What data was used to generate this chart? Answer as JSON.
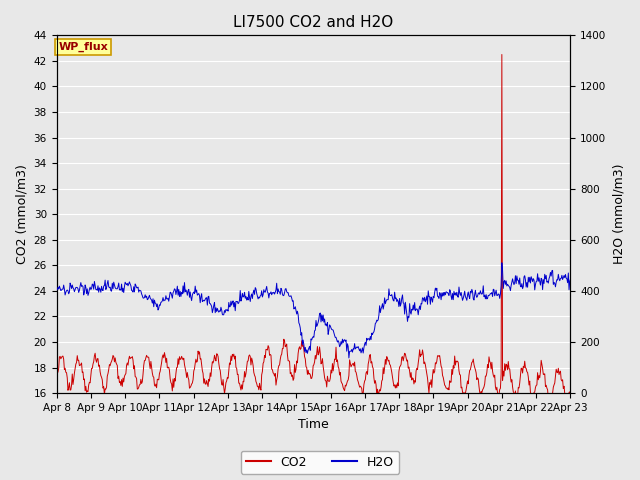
{
  "title": "LI7500 CO2 and H2O",
  "xlabel": "Time",
  "ylabel_left": "CO2 (mmol/m3)",
  "ylabel_right": "H2O (mmol/m3)",
  "ylim_left": [
    16,
    44
  ],
  "ylim_right": [
    0,
    1400
  ],
  "yticks_left": [
    16,
    18,
    20,
    22,
    24,
    26,
    28,
    30,
    32,
    34,
    36,
    38,
    40,
    42,
    44
  ],
  "yticks_right": [
    0,
    200,
    400,
    600,
    800,
    1000,
    1200,
    1400
  ],
  "xtick_labels": [
    "Apr 8",
    "Apr 9",
    "Apr 10",
    "Apr 11",
    "Apr 12",
    "Apr 13",
    "Apr 14",
    "Apr 15",
    "Apr 16",
    "Apr 17",
    "Apr 18",
    "Apr 19",
    "Apr 20",
    "Apr 21",
    "Apr 22",
    "Apr 23"
  ],
  "co2_color": "#cc0000",
  "h2o_color": "#0000cc",
  "bg_color": "#e8e8e8",
  "plot_bg_color": "#e8e8e8",
  "legend_box_color": "#ffff99",
  "legend_box_edge": "#cc9900",
  "annotation_text": "WP_flux",
  "grid_color": "#ffffff",
  "title_fontsize": 11,
  "axis_label_fontsize": 9,
  "tick_fontsize": 7.5,
  "spike_day": 21.0,
  "spike_co2_value": 42.5
}
